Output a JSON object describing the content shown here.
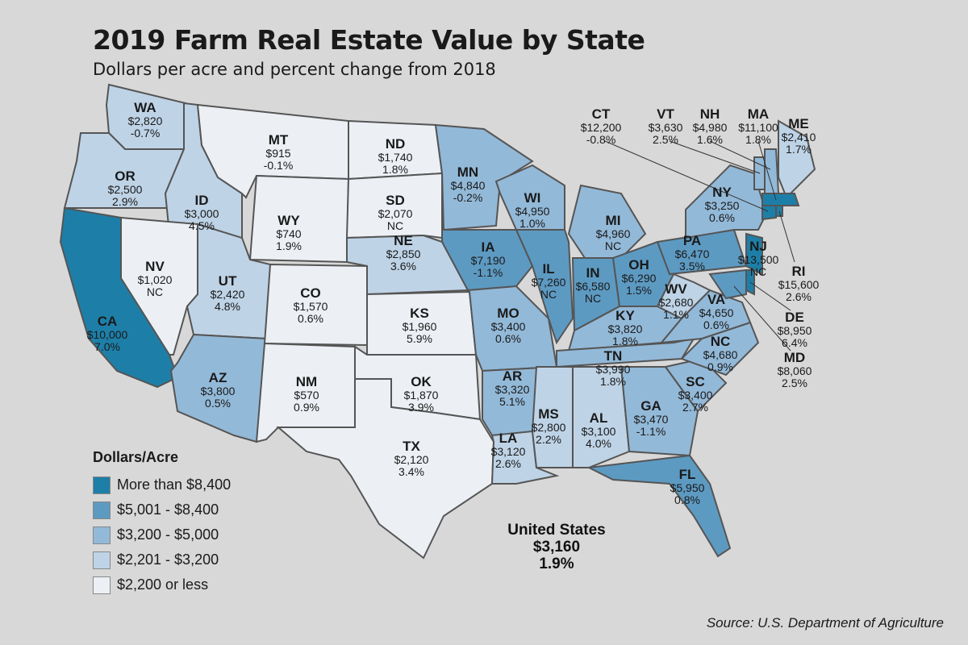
{
  "title": "2019 Farm Real Estate Value by State",
  "subtitle": "Dollars per acre and percent change from 2018",
  "legend": {
    "title": "Dollars/Acre",
    "items": [
      {
        "label": "More than $8,400",
        "color": "#1d7fa8"
      },
      {
        "label": "$5,001 - $8,400",
        "color": "#5d9ac2"
      },
      {
        "label": "$3,200 - $5,000",
        "color": "#93b9d8"
      },
      {
        "label": "$2,201 - $3,200",
        "color": "#bed3e6"
      },
      {
        "label": "$2,200 or less",
        "color": "#ecf0f5"
      }
    ]
  },
  "states": [
    {
      "abbr": "WA",
      "value": "$2,820",
      "change": "-0.7%",
      "tier": 3
    },
    {
      "abbr": "OR",
      "value": "$2,500",
      "change": "2.9%",
      "tier": 3
    },
    {
      "abbr": "CA",
      "value": "$10,000",
      "change": "7.0%",
      "tier": 0
    },
    {
      "abbr": "ID",
      "value": "$3,000",
      "change": "4.5%",
      "tier": 3
    },
    {
      "abbr": "NV",
      "value": "$1,020",
      "change": "NC",
      "tier": 4
    },
    {
      "abbr": "MT",
      "value": "$915",
      "change": "-0.1%",
      "tier": 4
    },
    {
      "abbr": "WY",
      "value": "$740",
      "change": "1.9%",
      "tier": 4
    },
    {
      "abbr": "UT",
      "value": "$2,420",
      "change": "4.8%",
      "tier": 3
    },
    {
      "abbr": "AZ",
      "value": "$3,800",
      "change": "0.5%",
      "tier": 2
    },
    {
      "abbr": "CO",
      "value": "$1,570",
      "change": "0.6%",
      "tier": 4
    },
    {
      "abbr": "NM",
      "value": "$570",
      "change": "0.9%",
      "tier": 4
    },
    {
      "abbr": "ND",
      "value": "$1,740",
      "change": "1.8%",
      "tier": 4
    },
    {
      "abbr": "SD",
      "value": "$2,070",
      "change": "NC",
      "tier": 4
    },
    {
      "abbr": "NE",
      "value": "$2,850",
      "change": "3.6%",
      "tier": 3
    },
    {
      "abbr": "KS",
      "value": "$1,960",
      "change": "5.9%",
      "tier": 4
    },
    {
      "abbr": "OK",
      "value": "$1,870",
      "change": "3.9%",
      "tier": 4
    },
    {
      "abbr": "TX",
      "value": "$2,120",
      "change": "3.4%",
      "tier": 4
    },
    {
      "abbr": "MN",
      "value": "$4,840",
      "change": "-0.2%",
      "tier": 2
    },
    {
      "abbr": "IA",
      "value": "$7,190",
      "change": "-1.1%",
      "tier": 1
    },
    {
      "abbr": "MO",
      "value": "$3,400",
      "change": "0.6%",
      "tier": 2
    },
    {
      "abbr": "AR",
      "value": "$3,320",
      "change": "5.1%",
      "tier": 2
    },
    {
      "abbr": "LA",
      "value": "$3,120",
      "change": "2.6%",
      "tier": 3
    },
    {
      "abbr": "WI",
      "value": "$4,950",
      "change": "1.0%",
      "tier": 2
    },
    {
      "abbr": "IL",
      "value": "$7,260",
      "change": "NC",
      "tier": 1
    },
    {
      "abbr": "MI",
      "value": "$4,960",
      "change": "NC",
      "tier": 2
    },
    {
      "abbr": "IN",
      "value": "$6,580",
      "change": "NC",
      "tier": 1
    },
    {
      "abbr": "OH",
      "value": "$6,290",
      "change": "1.5%",
      "tier": 1
    },
    {
      "abbr": "KY",
      "value": "$3,820",
      "change": "1.8%",
      "tier": 2
    },
    {
      "abbr": "TN",
      "value": "$3,990",
      "change": "1.8%",
      "tier": 2
    },
    {
      "abbr": "MS",
      "value": "$2,800",
      "change": "2.2%",
      "tier": 3
    },
    {
      "abbr": "AL",
      "value": "$3,100",
      "change": "4.0%",
      "tier": 3
    },
    {
      "abbr": "GA",
      "value": "$3,470",
      "change": "-1.1%",
      "tier": 2
    },
    {
      "abbr": "FL",
      "value": "$5,950",
      "change": "0.8%",
      "tier": 1
    },
    {
      "abbr": "SC",
      "value": "$3,400",
      "change": "2.7%",
      "tier": 2
    },
    {
      "abbr": "NC",
      "value": "$4,680",
      "change": "0.9%",
      "tier": 2
    },
    {
      "abbr": "VA",
      "value": "$4,650",
      "change": "0.6%",
      "tier": 2
    },
    {
      "abbr": "WV",
      "value": "$2,680",
      "change": "1.1%",
      "tier": 3
    },
    {
      "abbr": "PA",
      "value": "$6,470",
      "change": "3.5%",
      "tier": 1
    },
    {
      "abbr": "NY",
      "value": "$3,250",
      "change": "0.6%",
      "tier": 2
    },
    {
      "abbr": "NJ",
      "value": "$13,500",
      "change": "NC",
      "tier": 0
    },
    {
      "abbr": "ME",
      "value": "$2,410",
      "change": "1.7%",
      "tier": 3
    },
    {
      "abbr": "CT",
      "value": "$12,200",
      "change": "-0.8%",
      "tier": 0
    },
    {
      "abbr": "VT",
      "value": "$3,630",
      "change": "2.5%",
      "tier": 2
    },
    {
      "abbr": "NH",
      "value": "$4,980",
      "change": "1.6%",
      "tier": 2
    },
    {
      "abbr": "MA",
      "value": "$11,100",
      "change": "1.8%",
      "tier": 0
    },
    {
      "abbr": "RI",
      "value": "$15,600",
      "change": "2.6%",
      "tier": 0
    },
    {
      "abbr": "DE",
      "value": "$8,950",
      "change": "6.4%",
      "tier": 0
    },
    {
      "abbr": "MD",
      "value": "$8,060",
      "change": "2.5%",
      "tier": 1
    }
  ],
  "us_total": {
    "label": "United States",
    "value": "$3,160",
    "change": "1.9%"
  },
  "source": "Source: U.S. Department of Agriculture"
}
